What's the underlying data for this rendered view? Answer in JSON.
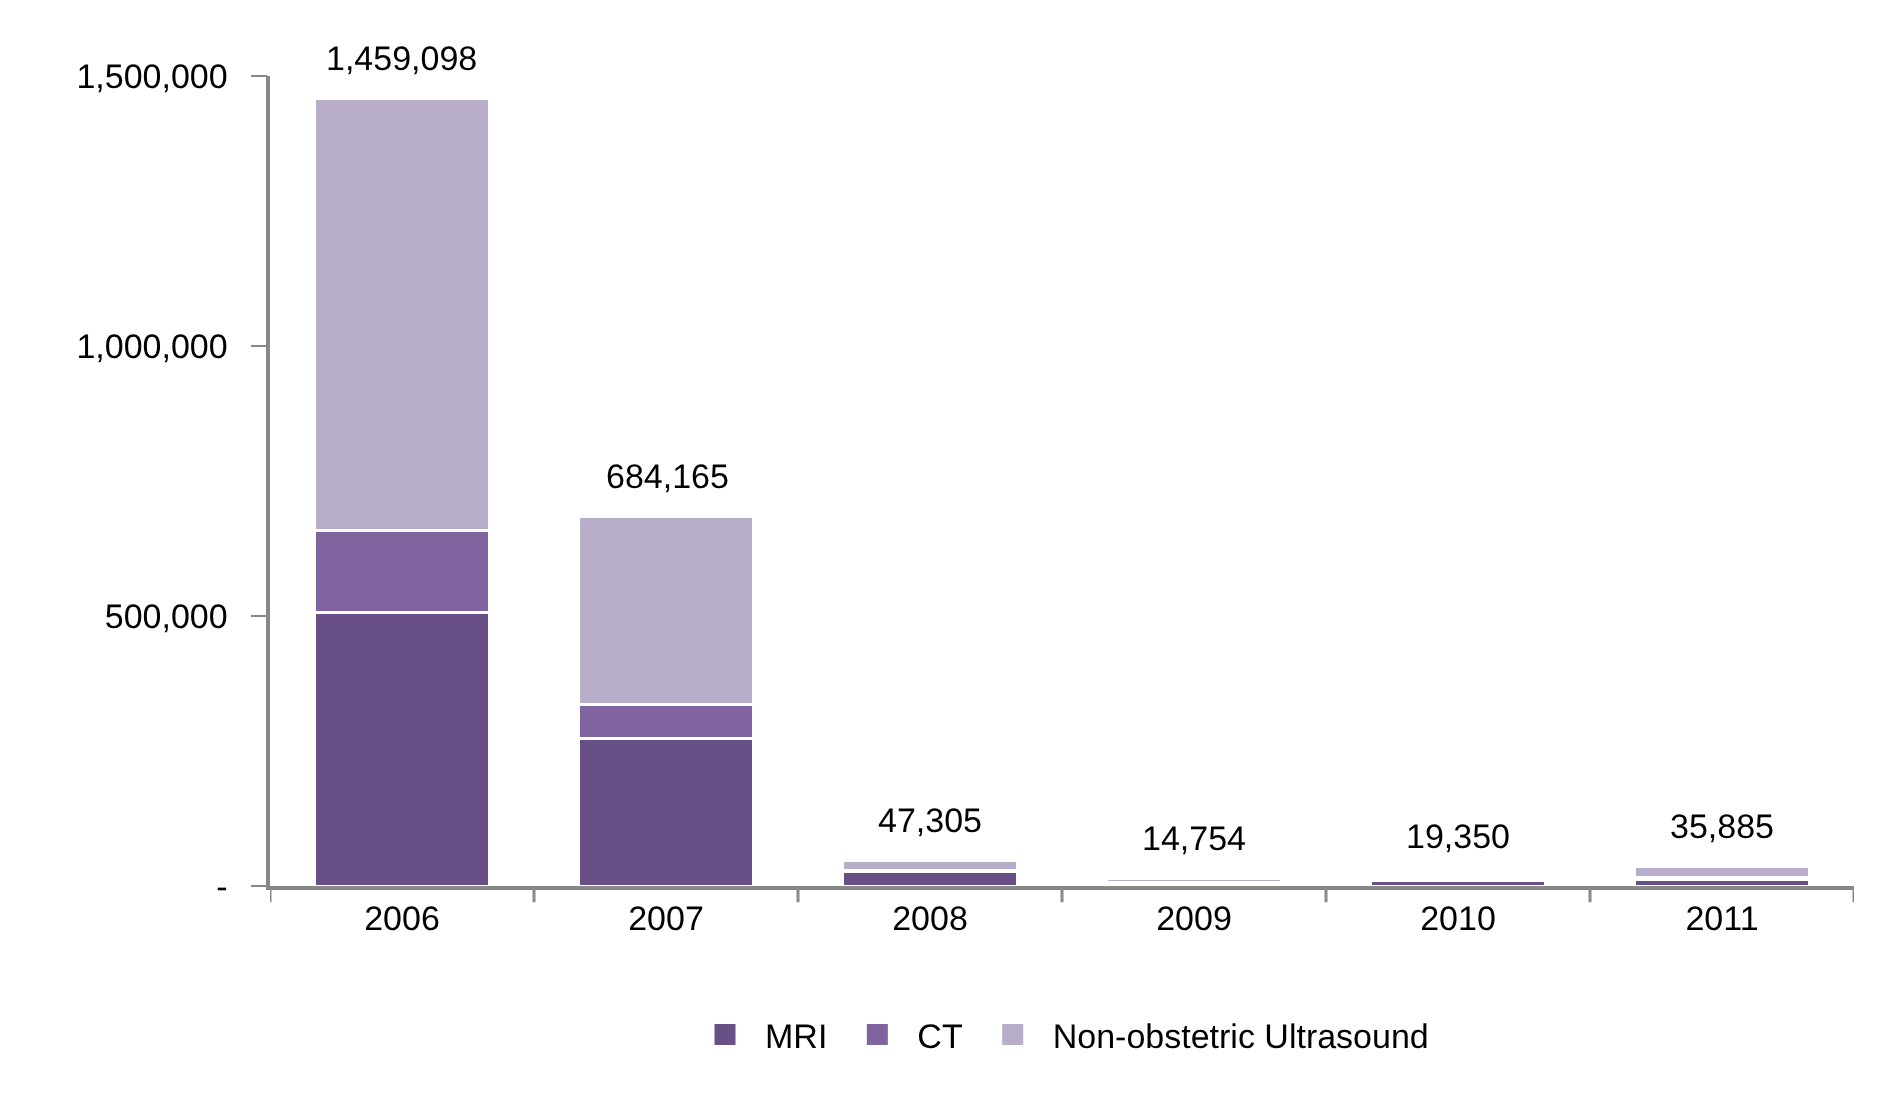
{
  "chart_data": {
    "type": "bar",
    "stacked": true,
    "categories": [
      "2006",
      "2007",
      "2008",
      "2009",
      "2010",
      "2011"
    ],
    "series": [
      {
        "name": "MRI",
        "color": "#684f86",
        "values": [
          507000,
          274000,
          26000,
          5000,
          10000,
          12000
        ]
      },
      {
        "name": "CT",
        "color": "#8064a0",
        "values": [
          151000,
          63000,
          3000,
          2000,
          4000,
          4000
        ]
      },
      {
        "name": "Non-obstetric Ultrasound",
        "color": "#b9aec9",
        "values": [
          801098,
          347165,
          18305,
          7754,
          5350,
          19885
        ]
      }
    ],
    "totals": [
      "1,459,098",
      "684,165",
      "47,305",
      "14,754",
      "19,350",
      "35,885"
    ],
    "ylim": [
      0,
      1500000
    ],
    "yticks": [
      {
        "value": 0,
        "label": "-"
      },
      {
        "value": 500000,
        "label": "500,000"
      },
      {
        "value": 1000000,
        "label": "1,000,000"
      },
      {
        "value": 1500000,
        "label": "1,500,000"
      }
    ],
    "legend": "bottom"
  }
}
